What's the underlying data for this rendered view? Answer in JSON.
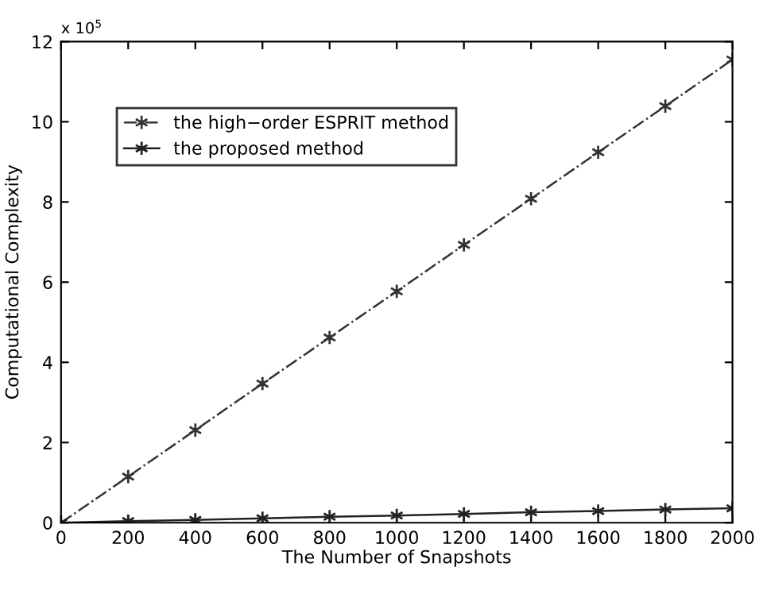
{
  "chart_data": {
    "type": "line",
    "xlabel": "The Number of Snapshots",
    "ylabel": "Computational Complexity",
    "x": [
      0,
      200,
      400,
      600,
      800,
      1000,
      1200,
      1400,
      1600,
      1800,
      2000
    ],
    "series": [
      {
        "name": "the high−order ESPRIT method",
        "color": "#333333",
        "line_style": "dashdot",
        "values": [
          0,
          1.15,
          2.31,
          3.47,
          4.62,
          5.77,
          6.93,
          8.08,
          9.24,
          10.39,
          11.55
        ]
      },
      {
        "name": "the proposed method",
        "color": "#222222",
        "line_style": "solid",
        "values": [
          0,
          0.04,
          0.07,
          0.11,
          0.15,
          0.18,
          0.22,
          0.26,
          0.29,
          0.33,
          0.36
        ]
      }
    ],
    "marker": "cross",
    "annotations": [
      "x 10$^{5}$"
    ],
    "xlim": [
      0,
      2000
    ],
    "xticks": [
      0,
      200,
      400,
      600,
      800,
      1000,
      1200,
      1400,
      1600,
      1800,
      2000
    ],
    "ylim": [
      0,
      12
    ],
    "yticks": [
      0,
      2,
      4,
      6,
      8,
      10,
      12
    ],
    "grid": false,
    "legend": "top left"
  }
}
